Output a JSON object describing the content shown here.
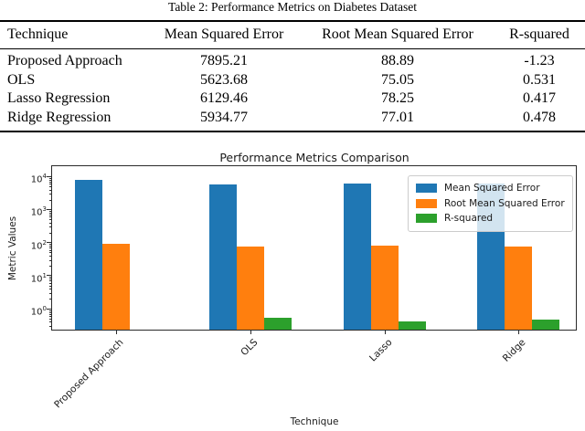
{
  "table": {
    "title": "Table 2: Performance Metrics on Diabetes Dataset",
    "headers": [
      "Technique",
      "Mean Squared Error",
      "Root Mean Squared Error",
      "R-squared"
    ],
    "rows": [
      {
        "technique": "Proposed Approach",
        "mse": "7895.21",
        "rmse": "88.89",
        "r2": "-1.23"
      },
      {
        "technique": "OLS",
        "mse": "5623.68",
        "rmse": "75.05",
        "r2": "0.531"
      },
      {
        "technique": "Lasso Regression",
        "mse": "6129.46",
        "rmse": "78.25",
        "r2": "0.417"
      },
      {
        "technique": "Ridge Regression",
        "mse": "5934.77",
        "rmse": "77.01",
        "r2": "0.478"
      }
    ]
  },
  "chart_data": {
    "type": "bar",
    "title": "Performance Metrics Comparison",
    "xlabel": "Technique",
    "ylabel": "Metric Values",
    "categories": [
      "Proposed Approach",
      "OLS",
      "Lasso",
      "Ridge"
    ],
    "series": [
      {
        "name": "Mean Squared Error",
        "color": "#1f77b4",
        "values": [
          7895.21,
          5623.68,
          6129.46,
          5934.77
        ]
      },
      {
        "name": "Root Mean Squared Error",
        "color": "#ff7f0e",
        "values": [
          88.89,
          75.05,
          78.25,
          77.01
        ]
      },
      {
        "name": "R-squared",
        "color": "#2ca02c",
        "values": [
          -1.23,
          0.531,
          0.417,
          0.478
        ]
      }
    ],
    "yscale": "log",
    "ylim": [
      0.22,
      20000
    ],
    "y_ticks": [
      "10^0",
      "10^1",
      "10^2",
      "10^3",
      "10^4"
    ],
    "legend_position": "upper right",
    "grid": false,
    "note": "negative R-squared value (-1.23) renders no bar on log axis"
  }
}
